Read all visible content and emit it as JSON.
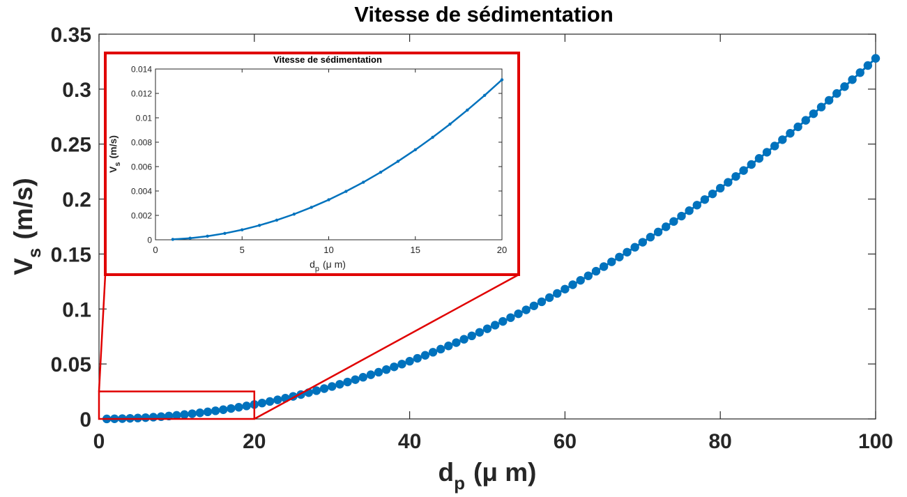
{
  "chart_data": [
    {
      "id": "main",
      "type": "scatter",
      "title": "Vitesse de sédimentation",
      "xlabel": "d",
      "xlabel_sub": "p",
      "xlabel_unit": "(μ m)",
      "ylabel": "V",
      "ylabel_sub": "s",
      "ylabel_unit": "(m/s)",
      "xlim": [
        0,
        100
      ],
      "ylim": [
        0,
        0.35
      ],
      "xticks": [
        0,
        20,
        40,
        60,
        80,
        100
      ],
      "yticks": [
        0,
        0.05,
        0.1,
        0.15,
        0.2,
        0.25,
        0.3,
        0.35
      ],
      "xtick_labels": [
        "0",
        "20",
        "40",
        "60",
        "80",
        "100"
      ],
      "ytick_labels": [
        "0",
        "0.05",
        "0.1",
        "0.15",
        "0.2",
        "0.25",
        "0.3",
        "0.35"
      ],
      "grid": false,
      "series": [
        {
          "x_start": 1,
          "x_end": 100,
          "x_step": 1,
          "model": "y = 3.28e-5 * x^2",
          "color": "#0072BD"
        }
      ],
      "zoom_region": {
        "x": [
          0,
          20
        ],
        "y": [
          0,
          0.025
        ]
      }
    },
    {
      "id": "inset",
      "type": "line",
      "title": "Vitesse de sédimentation",
      "xlabel": "d",
      "xlabel_sub": "p",
      "xlabel_unit": "(μ m)",
      "ylabel": "V",
      "ylabel_sub": "s",
      "ylabel_unit": "(m/s)",
      "xlim": [
        0,
        20
      ],
      "ylim": [
        0,
        0.014
      ],
      "xticks": [
        0,
        5,
        10,
        15,
        20
      ],
      "yticks": [
        0,
        0.002,
        0.004,
        0.006,
        0.008,
        0.01,
        0.012,
        0.014
      ],
      "xtick_labels": [
        "0",
        "5",
        "10",
        "15",
        "20"
      ],
      "ytick_labels": [
        "0",
        "0.002",
        "0.004",
        "0.006",
        "0.008",
        "0.01",
        "0.012",
        "0.014"
      ],
      "grid": false,
      "series": [
        {
          "x": [
            1,
            2,
            3,
            4,
            5,
            6,
            7,
            8,
            9,
            10,
            11,
            12,
            13,
            14,
            15,
            16,
            17,
            18,
            19,
            20
          ],
          "y": [
            3.3e-05,
            0.000131,
            0.000295,
            0.000525,
            0.00082,
            0.00118,
            0.00161,
            0.0021,
            0.00266,
            0.00328,
            0.00397,
            0.00472,
            0.00554,
            0.00643,
            0.00738,
            0.0084,
            0.00948,
            0.01063,
            0.01184,
            0.01312
          ],
          "color": "#0072BD"
        }
      ]
    }
  ],
  "colors": {
    "series": "#0072BD",
    "zoom": "#e00000",
    "axis": "#262626"
  }
}
